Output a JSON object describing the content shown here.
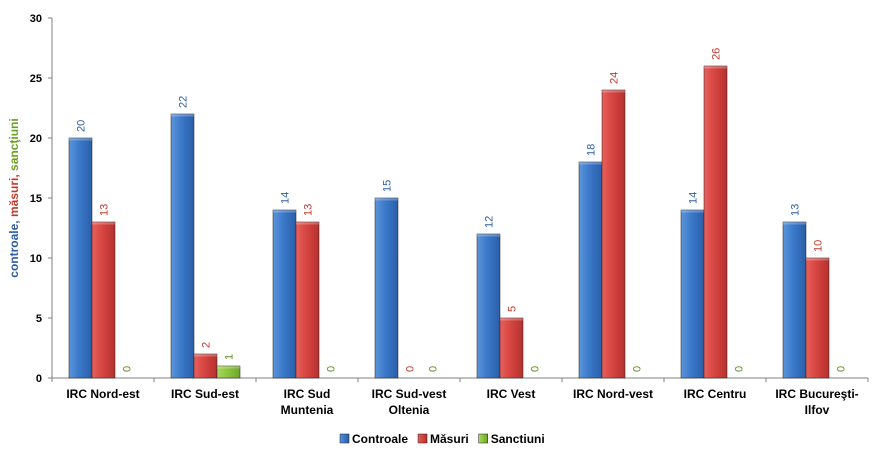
{
  "chart_data": {
    "type": "bar",
    "categories": [
      [
        "IRC Nord-est"
      ],
      [
        "IRC Sud-est"
      ],
      [
        "IRC Sud",
        "Muntenia"
      ],
      [
        "IRC Sud-vest",
        "Oltenia"
      ],
      [
        "IRC Vest"
      ],
      [
        "IRC Nord-vest"
      ],
      [
        "IRC Centru"
      ],
      [
        "IRC Bucureşti-",
        "Ilfov"
      ]
    ],
    "series": [
      {
        "name": "Controale",
        "values": [
          20,
          22,
          14,
          15,
          12,
          18,
          14,
          13
        ],
        "color": "#3A78C9",
        "label_color": "#2F5E9E"
      },
      {
        "name": "Măsuri",
        "values": [
          13,
          2,
          13,
          0,
          5,
          24,
          26,
          10
        ],
        "color": "#D64541",
        "label_color": "#C0392B"
      },
      {
        "name": "Sanctiuni",
        "values": [
          0,
          1,
          0,
          0,
          0,
          0,
          0,
          0
        ],
        "color": "#8DC63F",
        "label_color": "#5E8E1E"
      }
    ],
    "ylabel_parts": [
      {
        "text": "controale, ",
        "color": "#2F5E9E"
      },
      {
        "text": "măsuri, ",
        "color": "#C0392B"
      },
      {
        "text": "sancţiuni",
        "color": "#6AA121"
      }
    ],
    "ylim": [
      0,
      30
    ],
    "yticks": [
      0,
      5,
      10,
      15,
      20,
      25,
      30
    ],
    "legend_position": "bottom-center"
  }
}
